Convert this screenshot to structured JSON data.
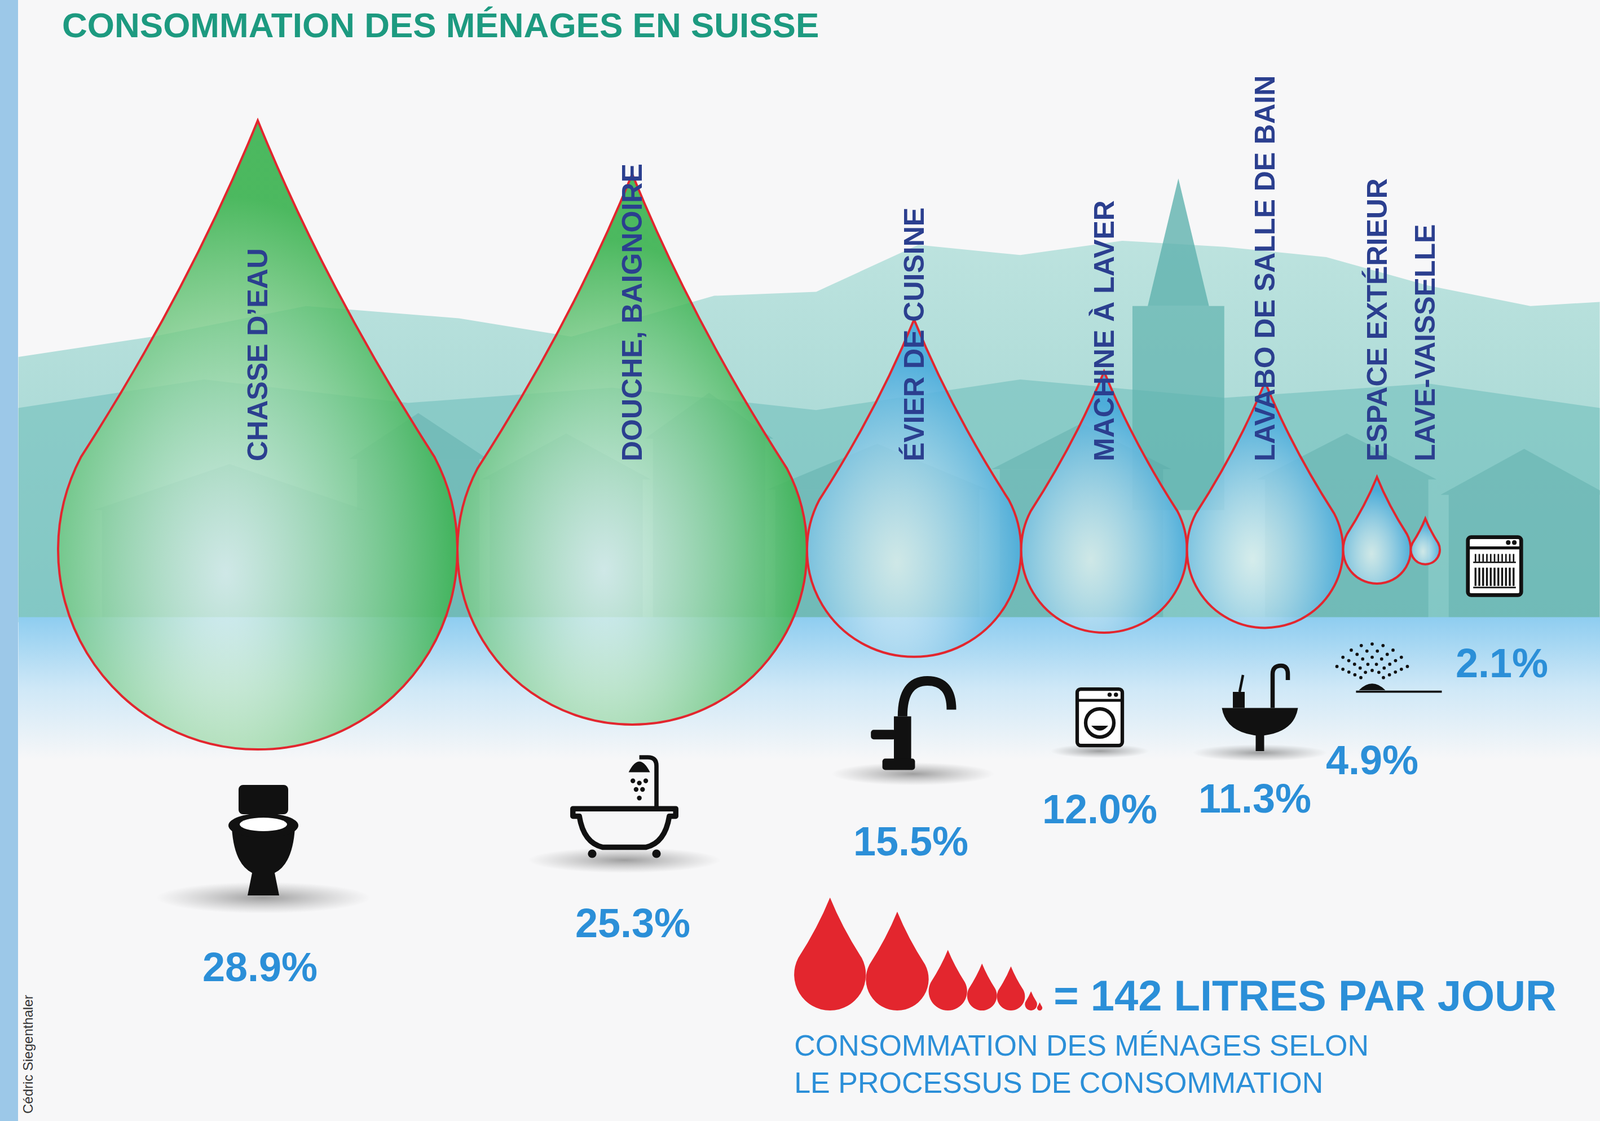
{
  "chart_data": {
    "type": "drop",
    "title": "CONSOMMATION DES MÉNAGES EN SUISSE",
    "categories": [
      "CHASSE D’EAU",
      "DOUCHE, BAIGNOIRE",
      "ÉVIER DE CUISINE",
      "MACHINE À LAVER",
      "LAVABO DE SALLE DE BAIN",
      "ESPACE EXTÉRIEUR",
      "LAVE-VAISSELLE"
    ],
    "values": [
      28.9,
      25.3,
      15.5,
      12.0,
      11.3,
      4.9,
      2.1
    ],
    "value_labels": [
      "28.9%",
      "25.3%",
      "15.5%",
      "12.0%",
      "11.3%",
      "4.9%",
      "2.1%"
    ],
    "colors": [
      "#34b04a",
      "#34b04a",
      "#45a9dc",
      "#45a9dc",
      "#45a9dc",
      "#45a9dc",
      "#45a9dc"
    ],
    "data_labels": true,
    "total_label": "= 142 LITRES PAR JOUR",
    "caption": [
      "CONSOMMATION DES MÉNAGES SELON",
      "LE PROCESSUS DE CONSOMMATION"
    ],
    "credit": "Cédric Siegenthaler"
  }
}
